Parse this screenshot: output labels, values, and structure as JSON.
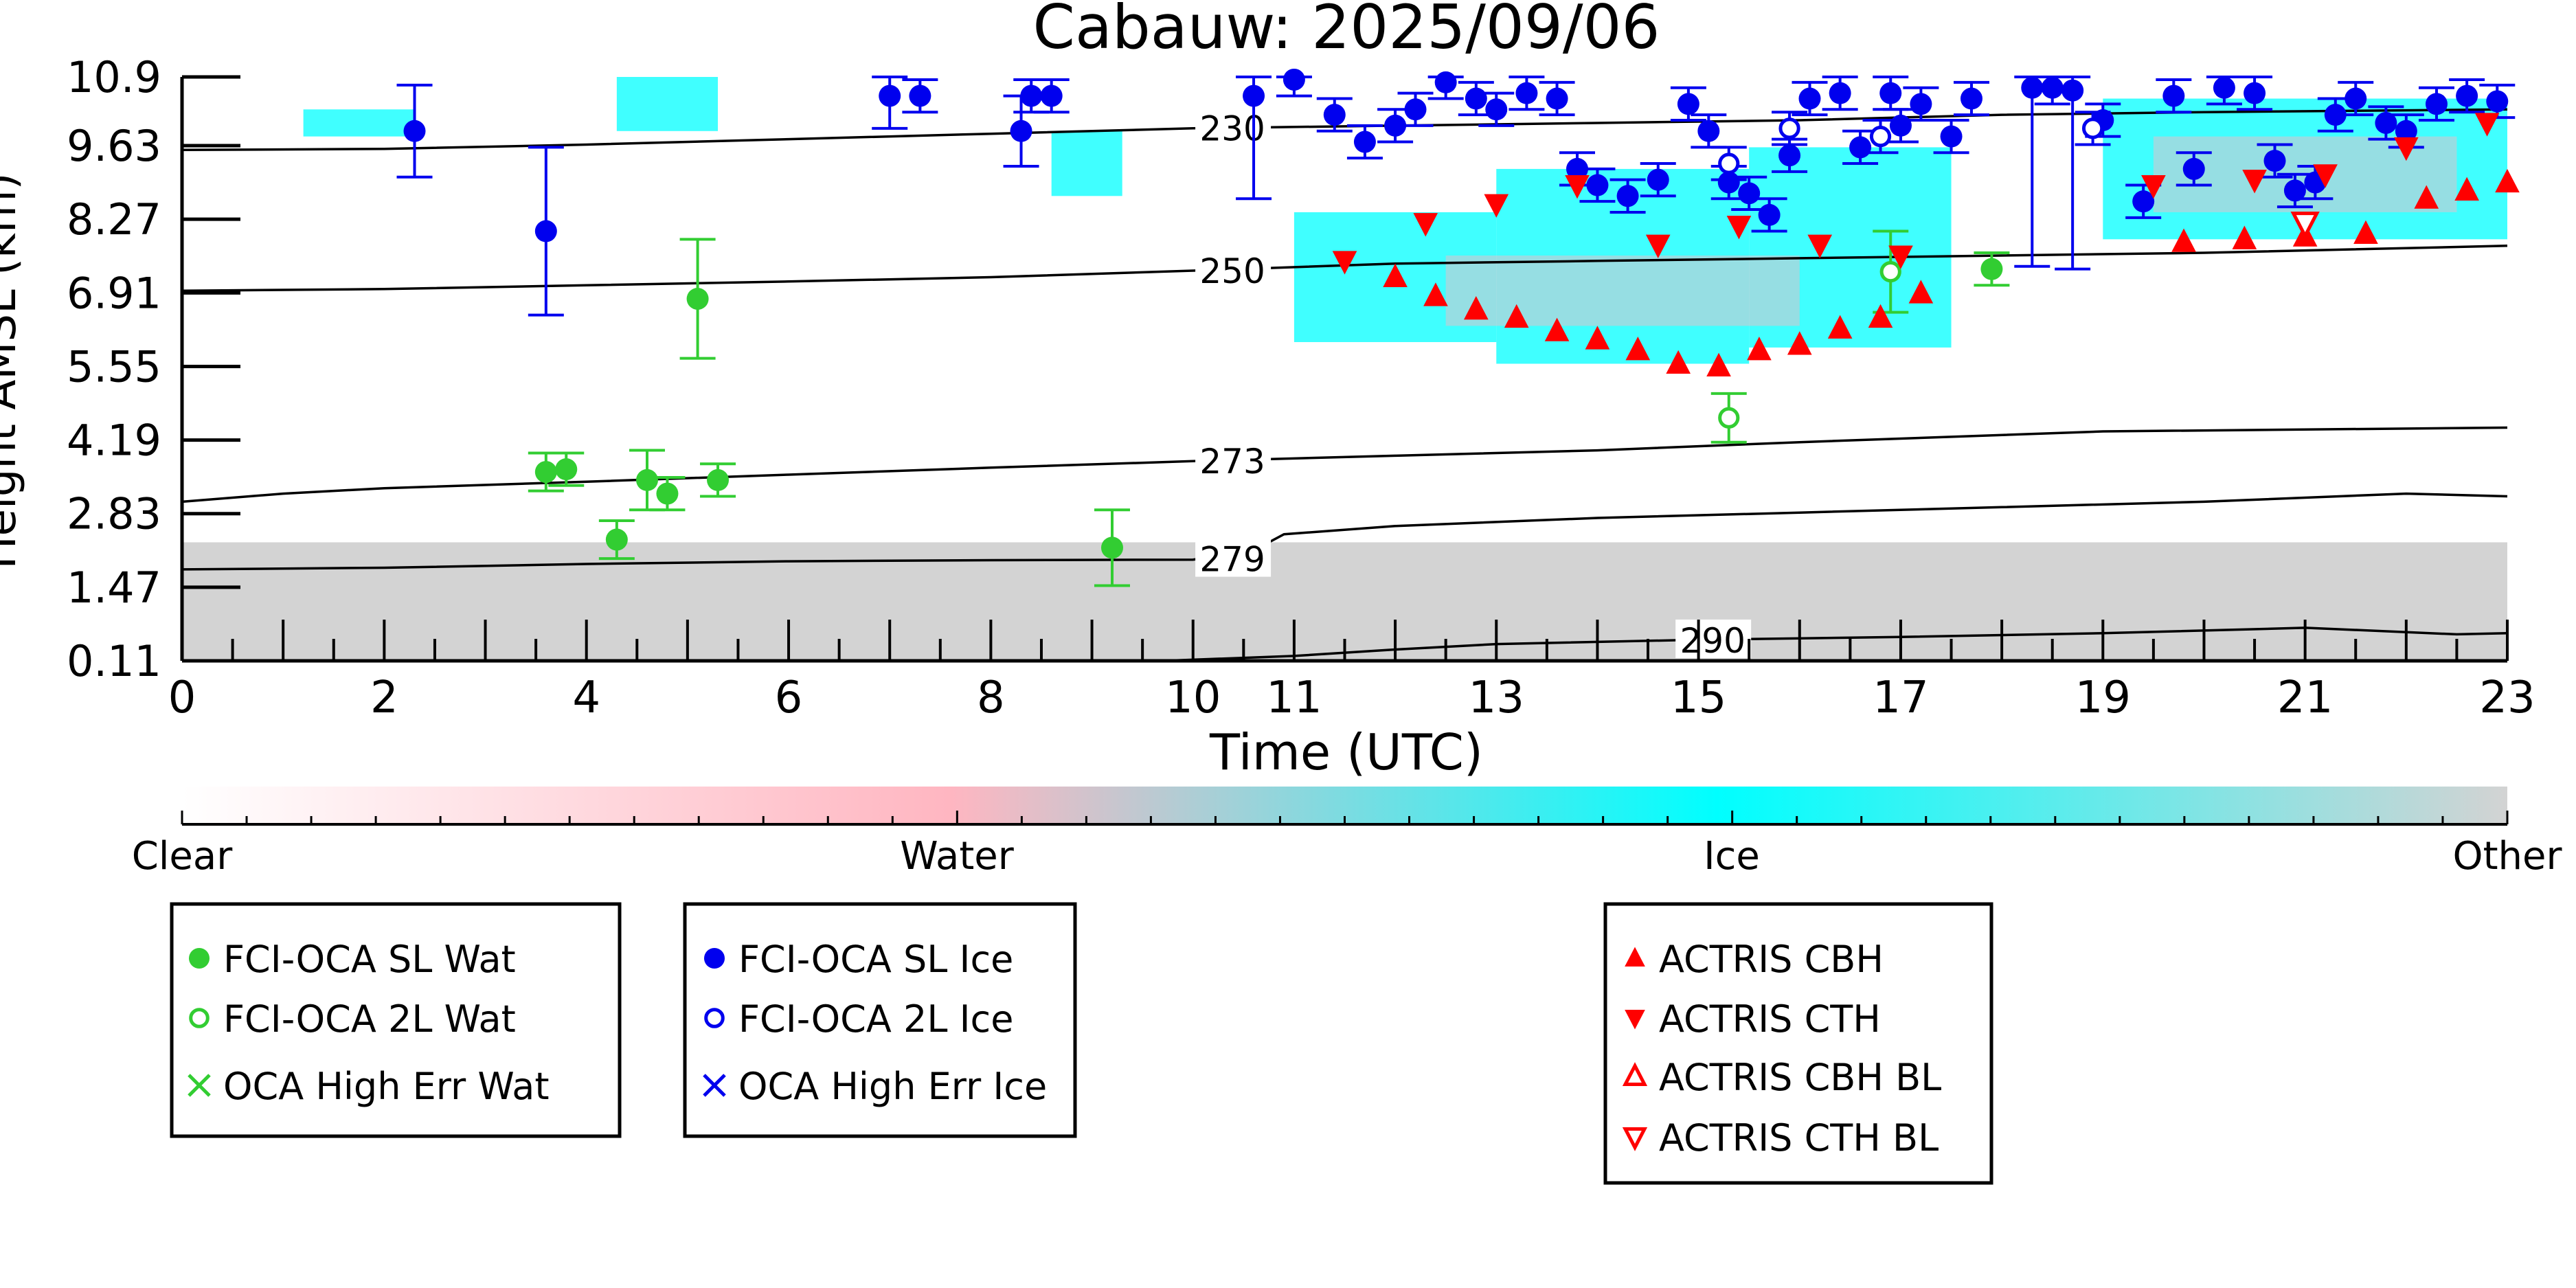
{
  "chart_data": {
    "type": "scatter",
    "title": "Cabauw: 2025/09/06",
    "xlabel": "Time (UTC)",
    "ylabel": "Height AMSL (km)",
    "xlim": [
      0,
      23
    ],
    "ylim": [
      0.11,
      10.9
    ],
    "x_ticks": [
      0,
      2,
      4,
      6,
      8,
      10,
      11,
      13,
      15,
      17,
      19,
      21,
      23
    ],
    "x_tick_labels": [
      "0",
      "2",
      "4",
      "6",
      "8",
      "10",
      "11",
      "13",
      "15",
      "17",
      "19",
      "21",
      "23"
    ],
    "y_ticks": [
      0.11,
      1.47,
      2.83,
      4.19,
      5.55,
      6.91,
      8.27,
      9.63,
      10.9
    ],
    "y_tick_labels": [
      "0.11",
      "1.47",
      "2.83",
      "4.19",
      "5.55",
      "6.91",
      "8.27",
      "9.63",
      "10.9"
    ],
    "colorbar": {
      "labels": [
        "Clear",
        "Water",
        "Ice",
        "Other"
      ],
      "colors": [
        "#ffffff",
        "#ffb6c1",
        "#00ffff",
        "#d3d3d3"
      ]
    },
    "colors": {
      "water": "#32cd32",
      "ice": "#0000ee",
      "actris": "#ff0000",
      "background_cloud": "#d3d3d3",
      "ice_cloud": "#00ffff",
      "water_cloud": "#ffb6c1"
    },
    "isotherms": [
      {
        "label": "230",
        "label_x": 10.05,
        "points": [
          [
            0,
            9.55
          ],
          [
            2,
            9.57
          ],
          [
            4,
            9.65
          ],
          [
            6,
            9.75
          ],
          [
            8,
            9.85
          ],
          [
            10,
            9.95
          ],
          [
            12,
            10.0
          ],
          [
            14,
            10.05
          ],
          [
            16,
            10.1
          ],
          [
            18,
            10.2
          ],
          [
            20,
            10.25
          ],
          [
            23,
            10.3
          ]
        ]
      },
      {
        "label": "250",
        "label_x": 10.05,
        "points": [
          [
            0,
            6.95
          ],
          [
            2,
            6.98
          ],
          [
            4,
            7.05
          ],
          [
            6,
            7.12
          ],
          [
            8,
            7.2
          ],
          [
            10,
            7.32
          ],
          [
            12,
            7.45
          ],
          [
            14,
            7.5
          ],
          [
            16,
            7.55
          ],
          [
            18,
            7.6
          ],
          [
            20,
            7.65
          ],
          [
            23,
            7.78
          ]
        ]
      },
      {
        "label": "273",
        "label_x": 10.05,
        "points": [
          [
            0,
            3.05
          ],
          [
            1,
            3.2
          ],
          [
            2,
            3.3
          ],
          [
            4,
            3.42
          ],
          [
            6,
            3.55
          ],
          [
            8,
            3.68
          ],
          [
            10,
            3.8
          ],
          [
            12,
            3.9
          ],
          [
            14,
            4.0
          ],
          [
            16,
            4.15
          ],
          [
            17.5,
            4.25
          ],
          [
            19,
            4.35
          ],
          [
            23,
            4.42
          ]
        ]
      },
      {
        "label": "279",
        "label_x": 10.05,
        "points": [
          [
            0,
            1.8
          ],
          [
            2,
            1.83
          ],
          [
            4,
            1.9
          ],
          [
            6,
            1.95
          ],
          [
            8,
            1.97
          ],
          [
            10,
            1.98
          ],
          [
            10.6,
            2.15
          ],
          [
            10.9,
            2.45
          ],
          [
            12,
            2.6
          ],
          [
            14,
            2.75
          ],
          [
            16,
            2.85
          ],
          [
            18,
            2.95
          ],
          [
            20,
            3.05
          ],
          [
            22,
            3.2
          ],
          [
            23,
            3.15
          ]
        ]
      },
      {
        "label": "290",
        "label_x": 14.8,
        "points": [
          [
            9.7,
            0.11
          ],
          [
            11,
            0.2
          ],
          [
            12,
            0.32
          ],
          [
            13,
            0.42
          ],
          [
            15,
            0.5
          ],
          [
            17,
            0.55
          ],
          [
            19,
            0.62
          ],
          [
            21,
            0.72
          ],
          [
            22.5,
            0.6
          ],
          [
            23,
            0.62
          ]
        ]
      }
    ],
    "series": [
      {
        "name": "FCI-OCA SL Wat",
        "marker": "filled-circle",
        "color": "#32cd32",
        "points": [
          [
            3.6,
            3.6,
            0.35
          ],
          [
            3.8,
            3.65,
            0.3
          ],
          [
            4.3,
            2.35,
            0.35
          ],
          [
            4.6,
            3.45,
            0.55
          ],
          [
            4.8,
            3.2,
            0.3
          ],
          [
            5.1,
            6.8,
            1.1
          ],
          [
            5.3,
            3.45,
            0.3
          ],
          [
            9.2,
            2.2,
            0.7
          ],
          [
            17.9,
            7.35,
            0.3
          ]
        ]
      },
      {
        "name": "FCI-OCA 2L Wat",
        "marker": "open-circle",
        "color": "#32cd32",
        "points": [
          [
            15.3,
            4.6,
            0.45
          ],
          [
            16.9,
            7.3,
            0.75
          ]
        ]
      },
      {
        "name": "OCA High Err Wat",
        "marker": "x",
        "color": "#32cd32",
        "points": []
      },
      {
        "name": "FCI-OCA SL Ice",
        "marker": "filled-circle",
        "color": "#0000ee",
        "points": [
          [
            2.3,
            9.9,
            0.85
          ],
          [
            3.6,
            8.05,
            1.55
          ],
          [
            7.0,
            10.55,
            0.6
          ],
          [
            7.3,
            10.55,
            0.3
          ],
          [
            8.3,
            9.9,
            0.65
          ],
          [
            8.4,
            10.55,
            0.3
          ],
          [
            8.6,
            10.55,
            0.3
          ],
          [
            10.6,
            10.55,
            1.9
          ],
          [
            11.0,
            10.85,
            0.3
          ],
          [
            11.4,
            10.2,
            0.3
          ],
          [
            11.7,
            9.7,
            0.3
          ],
          [
            12.0,
            10.0,
            0.3
          ],
          [
            12.2,
            10.3,
            0.3
          ],
          [
            12.5,
            10.8,
            0.3
          ],
          [
            12.8,
            10.5,
            0.3
          ],
          [
            13.0,
            10.3,
            0.3
          ],
          [
            13.3,
            10.6,
            0.3
          ],
          [
            13.6,
            10.5,
            0.3
          ],
          [
            13.8,
            9.2,
            0.3
          ],
          [
            14.0,
            8.9,
            0.3
          ],
          [
            14.3,
            8.7,
            0.3
          ],
          [
            14.6,
            9.0,
            0.3
          ],
          [
            14.9,
            10.4,
            0.3
          ],
          [
            15.1,
            9.9,
            0.3
          ],
          [
            15.3,
            8.95,
            0.3
          ],
          [
            15.5,
            8.75,
            0.3
          ],
          [
            15.7,
            8.35,
            0.3
          ],
          [
            15.9,
            9.45,
            0.3
          ],
          [
            16.1,
            10.5,
            0.3
          ],
          [
            16.4,
            10.6,
            0.3
          ],
          [
            16.6,
            9.6,
            0.3
          ],
          [
            16.9,
            10.6,
            0.3
          ],
          [
            17.0,
            10.0,
            0.3
          ],
          [
            17.2,
            10.4,
            0.3
          ],
          [
            17.5,
            9.8,
            0.3
          ],
          [
            17.7,
            10.5,
            0.3
          ],
          [
            18.3,
            10.7,
            3.3
          ],
          [
            18.5,
            10.7,
            0.3
          ],
          [
            18.7,
            10.65,
            3.3
          ],
          [
            19.0,
            10.1,
            0.3
          ],
          [
            19.4,
            8.6,
            0.3
          ],
          [
            19.7,
            10.55,
            0.3
          ],
          [
            19.9,
            9.2,
            0.3
          ],
          [
            20.2,
            10.7,
            0.3
          ],
          [
            20.5,
            10.6,
            0.3
          ],
          [
            20.7,
            9.35,
            0.3
          ],
          [
            20.9,
            8.8,
            0.3
          ],
          [
            21.1,
            8.95,
            0.3
          ],
          [
            21.3,
            10.2,
            0.3
          ],
          [
            21.5,
            10.5,
            0.3
          ],
          [
            21.8,
            10.05,
            0.3
          ],
          [
            22.0,
            9.9,
            0.3
          ],
          [
            22.3,
            10.4,
            0.3
          ],
          [
            22.6,
            10.55,
            0.3
          ],
          [
            22.9,
            10.45,
            0.3
          ]
        ]
      },
      {
        "name": "FCI-OCA 2L Ice",
        "marker": "open-circle",
        "color": "#0000ee",
        "points": [
          [
            15.3,
            9.3,
            0.3
          ],
          [
            15.9,
            9.95,
            0.3
          ],
          [
            16.8,
            9.8,
            0.3
          ],
          [
            18.9,
            9.95,
            0.3
          ]
        ]
      },
      {
        "name": "OCA High Err Ice",
        "marker": "x",
        "color": "#0000ee",
        "points": []
      },
      {
        "name": "ACTRIS CBH",
        "marker": "triangle-up",
        "color": "#ff0000",
        "points": [
          [
            12.0,
            7.2
          ],
          [
            12.4,
            6.85
          ],
          [
            12.8,
            6.6
          ],
          [
            13.2,
            6.45
          ],
          [
            13.6,
            6.2
          ],
          [
            14.0,
            6.05
          ],
          [
            14.4,
            5.85
          ],
          [
            14.8,
            5.6
          ],
          [
            15.2,
            5.55
          ],
          [
            15.6,
            5.85
          ],
          [
            16.0,
            5.95
          ],
          [
            16.4,
            6.25
          ],
          [
            16.8,
            6.45
          ],
          [
            17.2,
            6.9
          ],
          [
            19.8,
            7.85
          ],
          [
            20.4,
            7.9
          ],
          [
            21.0,
            7.95
          ],
          [
            21.6,
            8.0
          ],
          [
            22.2,
            8.65
          ],
          [
            22.6,
            8.8
          ],
          [
            23.0,
            8.95
          ]
        ]
      },
      {
        "name": "ACTRIS CTH",
        "marker": "triangle-down",
        "color": "#ff0000",
        "points": [
          [
            11.5,
            7.5
          ],
          [
            12.3,
            8.2
          ],
          [
            13.0,
            8.55
          ],
          [
            13.8,
            8.9
          ],
          [
            14.6,
            7.8
          ],
          [
            15.4,
            8.15
          ],
          [
            16.2,
            7.8
          ],
          [
            17.0,
            7.6
          ],
          [
            19.5,
            8.9
          ],
          [
            20.5,
            9.0
          ],
          [
            21.2,
            9.1
          ],
          [
            22.0,
            9.6
          ],
          [
            22.8,
            10.05
          ]
        ]
      },
      {
        "name": "ACTRIS CBH BL",
        "marker": "open-triangle-up",
        "color": "#ff0000",
        "points": []
      },
      {
        "name": "ACTRIS CTH BL",
        "marker": "open-triangle-down",
        "color": "#ff0000",
        "points": [
          [
            21.0,
            8.2
          ]
        ]
      }
    ]
  }
}
